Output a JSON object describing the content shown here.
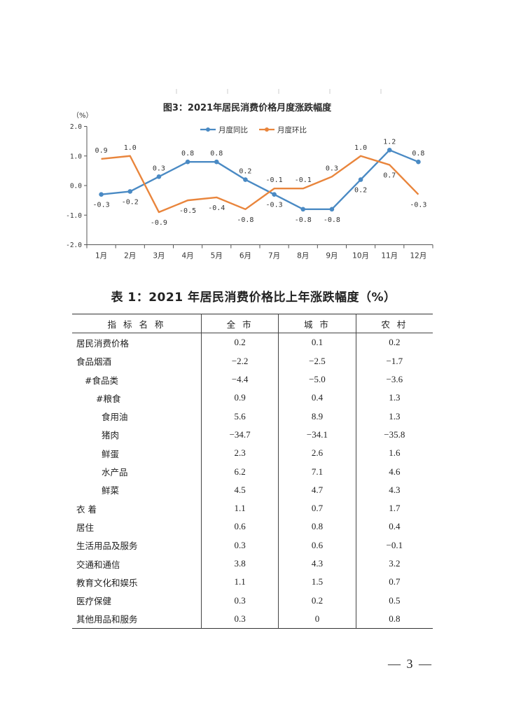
{
  "chart_data": {
    "type": "line",
    "title": "图3：2021年居民消费价格月度涨跌幅度",
    "ylabel": "（%）",
    "categories": [
      "1月",
      "2月",
      "3月",
      "4月",
      "5月",
      "6月",
      "7月",
      "8月",
      "9月",
      "10月",
      "11月",
      "12月"
    ],
    "ylim": [
      -2.0,
      2.0
    ],
    "yticks": [
      "2.0",
      "1.0",
      "0.0",
      "-1.0",
      "-2.0"
    ],
    "legend_position": "top-center",
    "grid": false,
    "series": [
      {
        "name": "月度同比",
        "color": "#4a8ac4",
        "values": [
          -0.3,
          -0.2,
          0.3,
          0.8,
          0.8,
          0.2,
          -0.3,
          -0.8,
          -0.8,
          0.2,
          1.2,
          0.8
        ],
        "labels": [
          "-0.3",
          "-0.2",
          "0.3",
          "0.8",
          "0.8",
          "0.2",
          "-0.3",
          "-0.8",
          "-0.8",
          "0.2",
          "1.2",
          "0.8"
        ]
      },
      {
        "name": "月度环比",
        "color": "#e9853c",
        "values": [
          0.9,
          1.0,
          -0.9,
          -0.5,
          -0.4,
          -0.8,
          -0.1,
          -0.1,
          0.3,
          1.0,
          0.7,
          -0.3
        ],
        "labels": [
          "0.9",
          "1.0",
          "-0.9",
          "-0.5",
          "-0.4",
          "-0.8",
          "-0.1",
          "-0.1",
          "0.3",
          "1.0",
          "0.7",
          "-0.3"
        ]
      }
    ]
  },
  "table": {
    "title": "表 1：2021 年居民消费价格比上年涨跌幅度（%）",
    "headers": [
      "指 标 名 称",
      "全 市",
      "城 市",
      "农 村"
    ],
    "rows": [
      {
        "name": "居民消费价格",
        "indent": 0,
        "values": [
          "0.2",
          "0.1",
          "0.2"
        ]
      },
      {
        "name": "食品烟酒",
        "indent": 0,
        "values": [
          "−2.2",
          "−2.5",
          "−1.7"
        ]
      },
      {
        "name": "#食品类",
        "indent": 1,
        "values": [
          "−4.4",
          "−5.0",
          "−3.6"
        ]
      },
      {
        "name": "#粮食",
        "indent": 2,
        "values": [
          "0.9",
          "0.4",
          "1.3"
        ]
      },
      {
        "name": "食用油",
        "indent": 3,
        "values": [
          "5.6",
          "8.9",
          "1.3"
        ]
      },
      {
        "name": "猪肉",
        "indent": 3,
        "values": [
          "−34.7",
          "−34.1",
          "−35.8"
        ]
      },
      {
        "name": "鲜蛋",
        "indent": 3,
        "values": [
          "2.3",
          "2.6",
          "1.6"
        ]
      },
      {
        "name": "水产品",
        "indent": 3,
        "values": [
          "6.2",
          "7.1",
          "4.6"
        ]
      },
      {
        "name": "鲜菜",
        "indent": 3,
        "values": [
          "4.5",
          "4.7",
          "4.3"
        ]
      },
      {
        "name": "衣 着",
        "indent": 0,
        "values": [
          "1.1",
          "0.7",
          "1.7"
        ]
      },
      {
        "name": "居住",
        "indent": 0,
        "values": [
          "0.6",
          "0.8",
          "0.4"
        ]
      },
      {
        "name": "生活用品及服务",
        "indent": 0,
        "values": [
          "0.3",
          "0.6",
          "−0.1"
        ]
      },
      {
        "name": "交通和通信",
        "indent": 0,
        "values": [
          "3.8",
          "4.3",
          "3.2"
        ]
      },
      {
        "name": "教育文化和娱乐",
        "indent": 0,
        "values": [
          "1.1",
          "1.5",
          "0.7"
        ]
      },
      {
        "name": "医疗保健",
        "indent": 0,
        "values": [
          "0.3",
          "0.2",
          "0.5"
        ]
      },
      {
        "name": "其他用品和服务",
        "indent": 0,
        "values": [
          "0.3",
          "0",
          "0.8"
        ]
      }
    ]
  },
  "page_number": "— 3 —"
}
